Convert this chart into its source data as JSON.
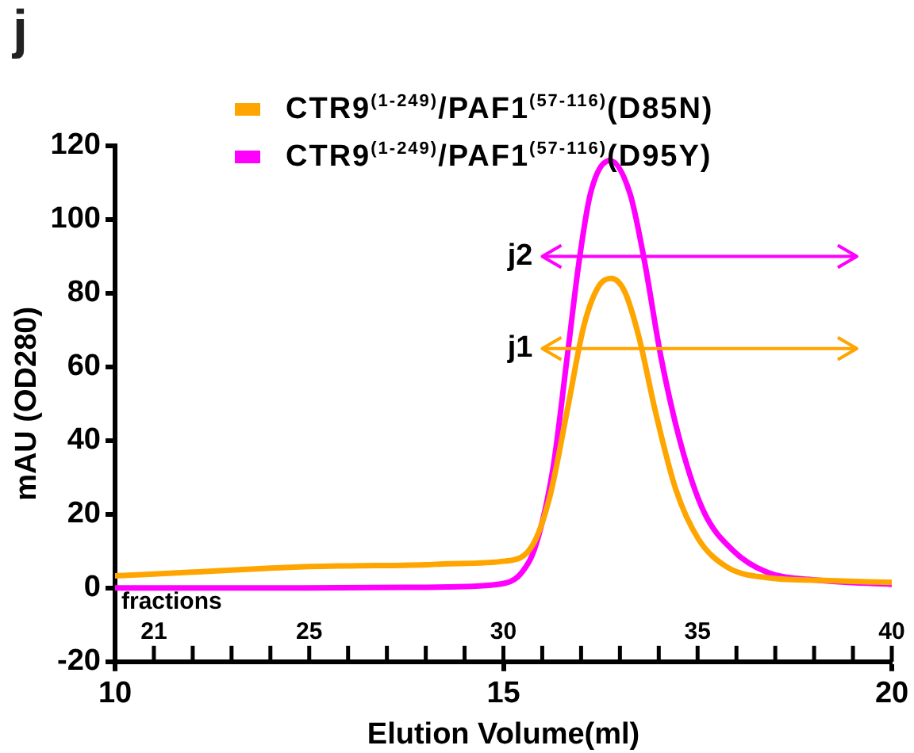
{
  "chart_data": {
    "type": "line",
    "title": "j",
    "xlabel": "Elution Volume(ml)",
    "ylabel": "mAU (OD280)",
    "x2label": "fractions",
    "xlim": [
      10,
      20
    ],
    "xticks": [
      10,
      15,
      20
    ],
    "ylim": [
      -20,
      120
    ],
    "yticks": [
      -20,
      0,
      20,
      40,
      60,
      80,
      100,
      120
    ],
    "x2lim": [
      20,
      40
    ],
    "x2ticks": [
      {
        "value": 21,
        "label": "21"
      },
      {
        "value": 22,
        "label": null
      },
      {
        "value": 23,
        "label": null
      },
      {
        "value": 24,
        "label": null
      },
      {
        "value": 25,
        "label": "25"
      },
      {
        "value": 26,
        "label": null
      },
      {
        "value": 27,
        "label": null
      },
      {
        "value": 28,
        "label": null
      },
      {
        "value": 29,
        "label": null
      },
      {
        "value": 30,
        "label": "30"
      },
      {
        "value": 31,
        "label": null
      },
      {
        "value": 32,
        "label": null
      },
      {
        "value": 33,
        "label": null
      },
      {
        "value": 34,
        "label": null
      },
      {
        "value": 35,
        "label": "35"
      },
      {
        "value": 36,
        "label": null
      },
      {
        "value": 37,
        "label": null
      },
      {
        "value": 38,
        "label": null
      },
      {
        "value": 39,
        "label": null
      },
      {
        "value": 40,
        "label": "40"
      }
    ],
    "grid": false,
    "legend": "top",
    "marker": "none",
    "line_style": "solid",
    "ref_lines": [
      {
        "axis": "y",
        "value": 65,
        "label": "j1",
        "color": "#ffa500"
      },
      {
        "axis": "y",
        "value": 90,
        "label": "j2",
        "color": "#ff00ff"
      }
    ],
    "series": [
      {
        "name": "CTR9$^{(1-249)}$/PAF1$^{(57-116)}$(D85N)",
        "color": "#ffa500",
        "x": [
          10,
          11,
          12,
          12.5,
          13,
          14,
          14.29,
          15.02,
          15.38,
          15.6,
          15.82,
          16.04,
          16.23,
          16.39,
          16.56,
          16.74,
          16.96,
          17.22,
          17.51,
          17.87,
          18.39,
          19.05,
          20
        ],
        "values": [
          3.3,
          4.3,
          5.4,
          5.8,
          6,
          6.3,
          6.6,
          7.3,
          11.8,
          25,
          48,
          71.5,
          82,
          84,
          80.5,
          68.5,
          47.6,
          26.7,
          13.3,
          5.8,
          2.8,
          2.1,
          1.5
        ]
      },
      {
        "name": "CTR9$^{(1-249)}$/PAF1$^{(57-116)}$(D95Y)",
        "color": "#ff00ff",
        "x": [
          10,
          12,
          14,
          14.29,
          15.02,
          15.24,
          15.42,
          15.64,
          15.82,
          15.97,
          16.12,
          16.37,
          16.63,
          16.81,
          17.03,
          17.29,
          17.58,
          17.95,
          18.39,
          19.05,
          20
        ],
        "values": [
          0,
          0,
          0.2,
          0.3,
          1.3,
          4.3,
          11.8,
          32.7,
          62.5,
          88,
          107,
          116,
          107,
          89.4,
          62.5,
          38.6,
          20.7,
          10.3,
          4.3,
          2.1,
          1
        ]
      }
    ]
  }
}
